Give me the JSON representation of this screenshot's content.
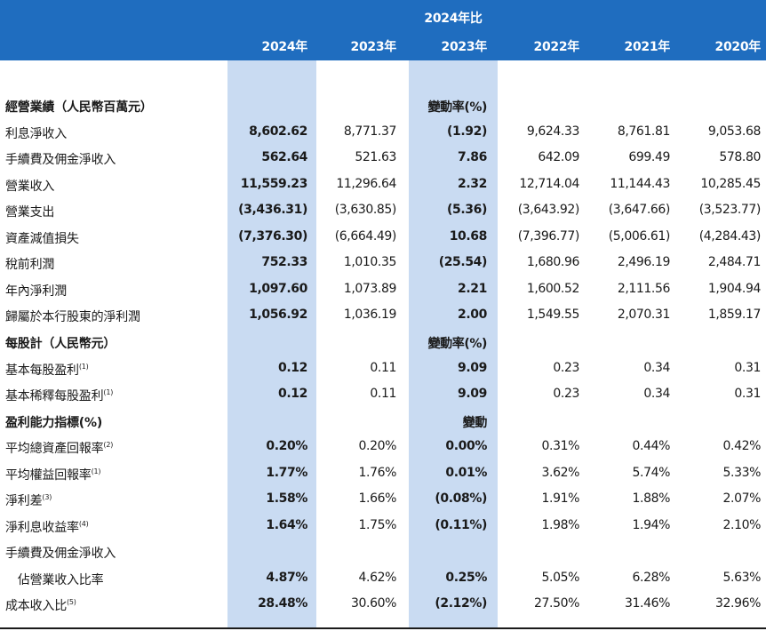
{
  "header": {
    "super_label": "2024年比",
    "columns": [
      "2024年",
      "2023年",
      "2023年",
      "2022年",
      "2021年",
      "2020年"
    ]
  },
  "rows": [
    {
      "type": "section",
      "label": "經營業績（人民幣百萬元）",
      "change_label": "變動率(%)"
    },
    {
      "type": "data",
      "label": "利息淨收入",
      "values": [
        "8,602.62",
        "8,771.37",
        "(1.92)",
        "9,624.33",
        "8,761.81",
        "9,053.68"
      ]
    },
    {
      "type": "data",
      "label": "手續費及佣金淨收入",
      "values": [
        "562.64",
        "521.63",
        "7.86",
        "642.09",
        "699.49",
        "578.80"
      ]
    },
    {
      "type": "data",
      "label": "營業收入",
      "values": [
        "11,559.23",
        "11,296.64",
        "2.32",
        "12,714.04",
        "11,144.43",
        "10,285.45"
      ]
    },
    {
      "type": "data",
      "label": "營業支出",
      "values": [
        "(3,436.31)",
        "(3,630.85)",
        "(5.36)",
        "(3,643.92)",
        "(3,647.66)",
        "(3,523.77)"
      ]
    },
    {
      "type": "data",
      "label": "資產減值損失",
      "values": [
        "(7,376.30)",
        "(6,664.49)",
        "10.68",
        "(7,396.77)",
        "(5,006.61)",
        "(4,284.43)"
      ]
    },
    {
      "type": "data",
      "label": "稅前利潤",
      "values": [
        "752.33",
        "1,010.35",
        "(25.54)",
        "1,680.96",
        "2,496.19",
        "2,484.71"
      ]
    },
    {
      "type": "data",
      "label": "年內淨利潤",
      "values": [
        "1,097.60",
        "1,073.89",
        "2.21",
        "1,600.52",
        "2,111.56",
        "1,904.94"
      ]
    },
    {
      "type": "data",
      "label": "歸屬於本行股東的淨利潤",
      "values": [
        "1,056.92",
        "1,036.19",
        "2.00",
        "1,549.55",
        "2,070.31",
        "1,859.17"
      ]
    },
    {
      "type": "section",
      "label": "每股計（人民幣元）",
      "change_label": "變動率(%)"
    },
    {
      "type": "data",
      "label": "基本每股盈利",
      "note": "(1)",
      "values": [
        "0.12",
        "0.11",
        "9.09",
        "0.23",
        "0.34",
        "0.31"
      ]
    },
    {
      "type": "data",
      "label": "基本稀釋每股盈利",
      "note": "(1)",
      "values": [
        "0.12",
        "0.11",
        "9.09",
        "0.23",
        "0.34",
        "0.31"
      ]
    },
    {
      "type": "section",
      "label": "盈利能力指標(%)",
      "change_label": "變動"
    },
    {
      "type": "data",
      "label": "平均總資產回報率",
      "note": "(2)",
      "values": [
        "0.20%",
        "0.20%",
        "0.00%",
        "0.31%",
        "0.44%",
        "0.42%"
      ]
    },
    {
      "type": "data",
      "label": "平均權益回報率",
      "note": "(1)",
      "values": [
        "1.77%",
        "1.76%",
        "0.01%",
        "3.62%",
        "5.74%",
        "5.33%"
      ]
    },
    {
      "type": "data",
      "label": "淨利差",
      "note": "(3)",
      "values": [
        "1.58%",
        "1.66%",
        "(0.08%)",
        "1.91%",
        "1.88%",
        "2.07%"
      ]
    },
    {
      "type": "data",
      "label": "淨利息收益率",
      "note": "(4)",
      "values": [
        "1.64%",
        "1.75%",
        "(0.11%)",
        "1.98%",
        "1.94%",
        "2.10%"
      ]
    },
    {
      "type": "label",
      "label": "手續費及佣金淨收入"
    },
    {
      "type": "data",
      "label": "　佔營業收入比率",
      "values": [
        "4.87%",
        "4.62%",
        "0.25%",
        "5.05%",
        "6.28%",
        "5.63%"
      ]
    },
    {
      "type": "data",
      "label": "成本收入比",
      "note": "(5)",
      "values": [
        "28.48%",
        "30.60%",
        "(2.12%)",
        "27.50%",
        "31.46%",
        "32.96%"
      ]
    }
  ]
}
